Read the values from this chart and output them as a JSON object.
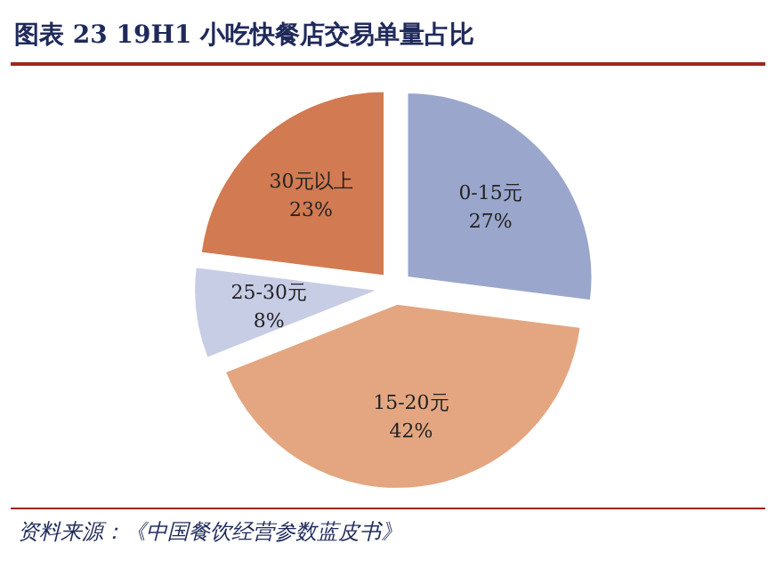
{
  "chart_data": {
    "type": "pie",
    "title": "图表 23   19H1 小吃快餐店交易单量占比",
    "categories": [
      "0-15元",
      "15-20元",
      "25-30元",
      "30元以上"
    ],
    "values": [
      27,
      42,
      8,
      23
    ],
    "colors": [
      "#9ba6cc",
      "#e3a681",
      "#c8cde6",
      "#d27a52"
    ],
    "value_labels": [
      "27%",
      "42%",
      "8%",
      "23%"
    ],
    "annotations": [
      "资料来源：《中国餐饮经营参数蓝皮书》"
    ]
  }
}
